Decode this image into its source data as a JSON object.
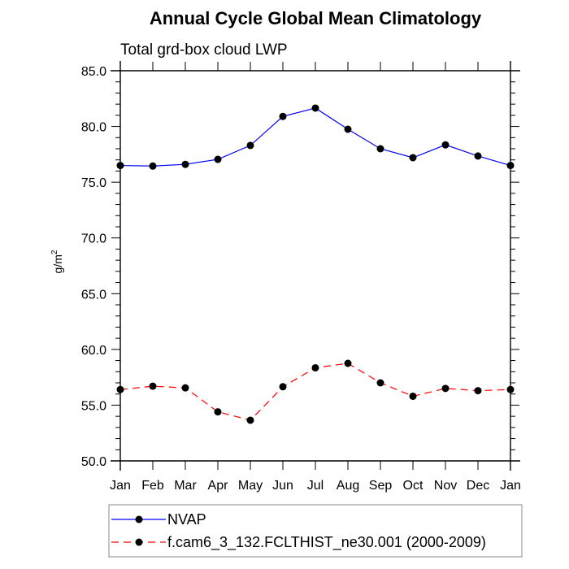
{
  "chart_data": {
    "type": "line",
    "title": "Annual Cycle Global Mean Climatology",
    "subtitle": "Total grd-box cloud LWP",
    "xlabel": "",
    "ylabel": "g/m",
    "ylabel_superscript": "2",
    "categories": [
      "Jan",
      "Feb",
      "Mar",
      "Apr",
      "May",
      "Jun",
      "Jul",
      "Aug",
      "Sep",
      "Oct",
      "Nov",
      "Dec",
      "Jan"
    ],
    "ylim": [
      50.0,
      85.0
    ],
    "yticks": [
      "50.0",
      "55.0",
      "60.0",
      "65.0",
      "70.0",
      "75.0",
      "80.0",
      "85.0"
    ],
    "ytick_values": [
      50,
      55,
      60,
      65,
      70,
      75,
      80,
      85
    ],
    "yminor_step": 1,
    "grid": false,
    "legend_position": "bottom",
    "series": [
      {
        "name": "NVAP",
        "color": "#0000ff",
        "dash": "solid",
        "marker": "filled-circle",
        "values": [
          76.5,
          76.45,
          76.6,
          77.05,
          78.3,
          80.9,
          81.65,
          79.75,
          78.0,
          77.2,
          78.35,
          77.35,
          76.5
        ]
      },
      {
        "name": "f.cam6_3_132.FCLTHIST_ne30.001 (2000-2009)",
        "color": "#ff0000",
        "dash": "dashed",
        "marker": "filled-circle",
        "values": [
          56.4,
          56.7,
          56.55,
          54.4,
          53.65,
          56.65,
          58.35,
          58.75,
          57.0,
          55.8,
          56.5,
          56.3,
          56.4
        ]
      }
    ]
  }
}
